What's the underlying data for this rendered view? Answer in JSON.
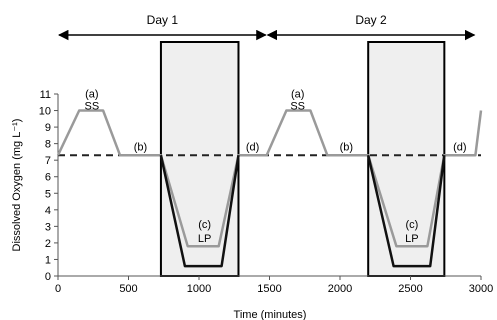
{
  "chart_data": {
    "type": "line",
    "xlabel": "Time (minutes)",
    "ylabel": "Dissolved Oxygen (mg L⁻¹)",
    "xlim": [
      0,
      3000
    ],
    "ylim": [
      0,
      11
    ],
    "x_ticks": [
      0,
      500,
      1000,
      1500,
      2000,
      2500,
      3000
    ],
    "y_ticks": [
      0,
      1,
      2,
      3,
      4,
      5,
      6,
      7,
      8,
      9,
      10,
      11
    ],
    "grid": false,
    "days": [
      {
        "label": "Day 1",
        "start": 0,
        "end": 1480
      },
      {
        "label": "Day 2",
        "start": 1480,
        "end": 2960
      }
    ],
    "dark_periods": [
      {
        "start": 730,
        "end": 1280
      },
      {
        "start": 2200,
        "end": 2740
      }
    ],
    "threshold": 7.3,
    "series": [
      {
        "color": "#9a9a9a",
        "x": [
          0,
          150,
          320,
          440,
          730,
          920,
          1140,
          1280,
          1480,
          1620,
          1790,
          1910,
          2200,
          2400,
          2620,
          2740,
          2960,
          3000
        ],
        "y": [
          7.3,
          10.0,
          10.0,
          7.3,
          7.3,
          1.8,
          1.8,
          7.3,
          7.3,
          10.0,
          10.0,
          7.3,
          7.3,
          1.8,
          1.8,
          7.3,
          7.3,
          10.0
        ]
      },
      {
        "color": "#111111",
        "x": [
          730,
          900,
          1160,
          1280
        ],
        "y": [
          7.3,
          0.6,
          0.6,
          7.3
        ]
      },
      {
        "color": "#111111",
        "x": [
          2200,
          2380,
          2640,
          2740
        ],
        "y": [
          7.3,
          0.6,
          0.6,
          7.3
        ]
      }
    ],
    "annotations": [
      {
        "text": "(a)",
        "x": 240,
        "y": 10.8
      },
      {
        "text": "SS",
        "x": 240,
        "y": 10.05
      },
      {
        "text": "(b)",
        "x": 585,
        "y": 7.6
      },
      {
        "text": "(c)",
        "x": 1040,
        "y": 2.9
      },
      {
        "text": "LP",
        "x": 1040,
        "y": 2.05
      },
      {
        "text": "(d)",
        "x": 1380,
        "y": 7.6
      },
      {
        "text": "(a)",
        "x": 1700,
        "y": 10.8
      },
      {
        "text": "SS",
        "x": 1700,
        "y": 10.05
      },
      {
        "text": "(b)",
        "x": 2045,
        "y": 7.6
      },
      {
        "text": "(c)",
        "x": 2510,
        "y": 2.9
      },
      {
        "text": "LP",
        "x": 2510,
        "y": 2.05
      },
      {
        "text": "(d)",
        "x": 2850,
        "y": 7.6
      }
    ]
  }
}
